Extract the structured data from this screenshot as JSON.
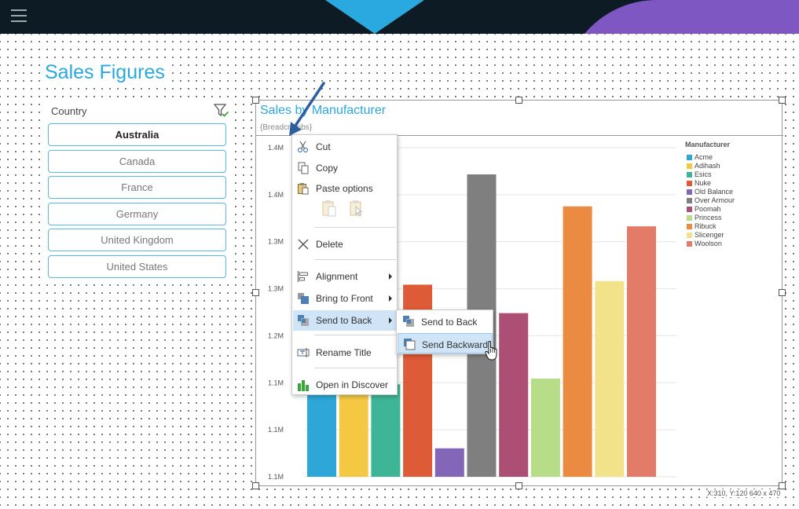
{
  "page": {
    "title": "Sales Figures"
  },
  "filter": {
    "label": "Country",
    "countries": [
      {
        "name": "Australia",
        "selected": true
      },
      {
        "name": "Canada",
        "selected": false
      },
      {
        "name": "France",
        "selected": false
      },
      {
        "name": "Germany",
        "selected": false
      },
      {
        "name": "United Kingdom",
        "selected": false
      },
      {
        "name": "United States",
        "selected": false
      }
    ]
  },
  "chart": {
    "title": "Sales by Manufacturer",
    "subtitle": "{Breadcrumbs}",
    "coords": "X:310, Y:120 640 x 470"
  },
  "chart_data": {
    "type": "bar",
    "categories": [
      "Acme",
      "Adihash",
      "Esics",
      "Nuke",
      "Old Balance",
      "Over Armour",
      "Poomah",
      "Princess",
      "Ribuck",
      "Slicenger",
      "Woolson"
    ],
    "values": [
      1.183,
      1.183,
      1.13,
      1.27,
      1.04,
      1.425,
      1.23,
      1.138,
      1.38,
      1.275,
      1.352
    ],
    "colors": [
      "#2ea6d8",
      "#f4c842",
      "#3fb597",
      "#dd5b36",
      "#8466b8",
      "#7f7f7f",
      "#ad4f74",
      "#b8dd88",
      "#eb8a41",
      "#f2e38a",
      "#e27c68"
    ],
    "yticks": [
      "1.1M",
      "1.1M",
      "1.1M",
      "1.2M",
      "1.3M",
      "1.3M",
      "1.4M",
      "1.4M"
    ],
    "ylim": [
      1.0,
      1.4625
    ],
    "legend_title": "Manufacturer",
    "legend_position": "top-right",
    "grid": true
  },
  "menu": {
    "items": [
      {
        "label": "Cut",
        "icon": "scissors-icon"
      },
      {
        "label": "Copy",
        "icon": "copy-icon"
      },
      {
        "label": "Paste options",
        "icon": "paste-icon"
      },
      {
        "label": "Delete",
        "icon": "delete-icon"
      },
      {
        "label": "Alignment",
        "icon": "alignment-icon"
      },
      {
        "label": "Bring to Front",
        "icon": "bring-to-front-icon"
      },
      {
        "label": "Send to Back",
        "icon": "send-to-back-icon"
      },
      {
        "label": "Rename Title",
        "icon": "rename-icon"
      },
      {
        "label": "Open in Discover",
        "icon": "discover-chart-icon"
      }
    ],
    "submenu": [
      {
        "label": "Send to Back",
        "icon": "send-to-back-icon"
      },
      {
        "label": "Send Backward",
        "icon": "send-backward-icon"
      }
    ]
  },
  "colors": {
    "accent": "#2aa8e0",
    "topbar": "#0d1c24",
    "purple": "#7e57c2",
    "menu_highlight": "#cfe4f6"
  }
}
